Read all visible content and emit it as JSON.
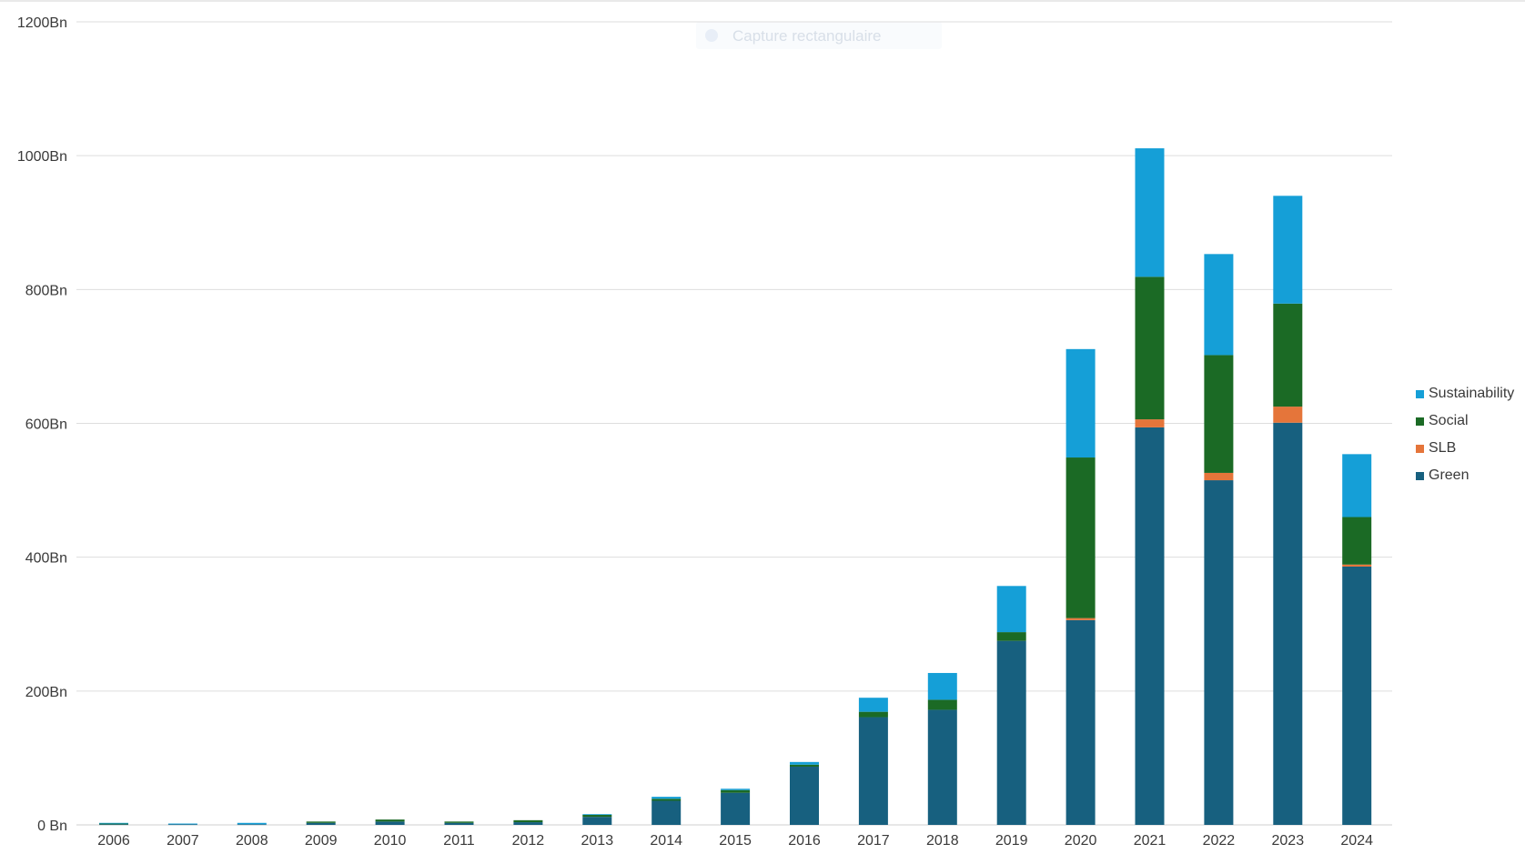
{
  "overlay": {
    "capture_label": "Capture rectangulaire"
  },
  "chart_data": {
    "type": "bar",
    "stacked": true,
    "categories": [
      "2006",
      "2007",
      "2008",
      "2009",
      "2010",
      "2011",
      "2012",
      "2013",
      "2014",
      "2015",
      "2016",
      "2017",
      "2018",
      "2019",
      "2020",
      "2021",
      "2022",
      "2023",
      "2024"
    ],
    "series": [
      {
        "name": "Green",
        "color": "#17607f",
        "values": [
          1,
          1,
          1,
          3,
          5,
          3,
          4,
          12,
          36,
          48,
          87,
          161,
          172,
          275,
          306,
          594,
          515,
          601,
          386
        ]
      },
      {
        "name": "SLB",
        "color": "#e5753a",
        "values": [
          0,
          0,
          0,
          0,
          0,
          0,
          0,
          0,
          0,
          0,
          0,
          0,
          0,
          0,
          3,
          12,
          11,
          24,
          3
        ]
      },
      {
        "name": "Social",
        "color": "#1b6a25",
        "values": [
          1,
          0,
          0,
          2,
          3,
          2,
          3,
          3,
          3,
          4,
          3,
          8,
          15,
          13,
          240,
          213,
          176,
          154,
          71
        ]
      },
      {
        "name": "Sustainability",
        "color": "#159fd7",
        "values": [
          1,
          1,
          2,
          0,
          0,
          0,
          0,
          1,
          3,
          2,
          4,
          21,
          40,
          69,
          162,
          192,
          151,
          161,
          94
        ]
      }
    ],
    "y_ticks": [
      "0 Bn",
      "200Bn",
      "400Bn",
      "600Bn",
      "800Bn",
      "1000Bn",
      "1200Bn"
    ],
    "ylim": [
      0,
      1200
    ],
    "grid": true,
    "legend_position": "right",
    "legend_order": [
      "Sustainability",
      "Social",
      "SLB",
      "Green"
    ],
    "title": "",
    "xlabel": "",
    "ylabel": ""
  }
}
